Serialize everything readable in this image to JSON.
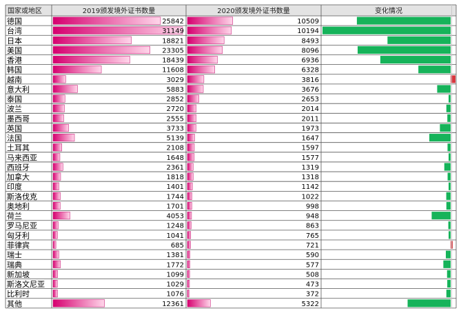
{
  "chart_data": {
    "type": "table",
    "headers": [
      "国家或地区",
      "2019颁发境外证书数量",
      "2020颁发境外证书数量",
      "变化情况"
    ],
    "rows": [
      {
        "region": "德国",
        "y2019": 25842,
        "y2020": 10509
      },
      {
        "region": "台湾",
        "y2019": 31149,
        "y2020": 10194
      },
      {
        "region": "日本",
        "y2019": 18821,
        "y2020": 8493
      },
      {
        "region": "美国",
        "y2019": 23305,
        "y2020": 8096
      },
      {
        "region": "香港",
        "y2019": 18439,
        "y2020": 6936
      },
      {
        "region": "韩国",
        "y2019": 11608,
        "y2020": 6328
      },
      {
        "region": "越南",
        "y2019": 3029,
        "y2020": 3816
      },
      {
        "region": "意大利",
        "y2019": 5883,
        "y2020": 3676
      },
      {
        "region": "泰国",
        "y2019": 2852,
        "y2020": 2653
      },
      {
        "region": "波兰",
        "y2019": 2720,
        "y2020": 2014
      },
      {
        "region": "墨西哥",
        "y2019": 2555,
        "y2020": 2011
      },
      {
        "region": "英国",
        "y2019": 3733,
        "y2020": 1973
      },
      {
        "region": "法国",
        "y2019": 5139,
        "y2020": 1647
      },
      {
        "region": "土耳其",
        "y2019": 2108,
        "y2020": 1597
      },
      {
        "region": "马来西亚",
        "y2019": 1648,
        "y2020": 1577
      },
      {
        "region": "西班牙",
        "y2019": 2361,
        "y2020": 1319
      },
      {
        "region": "加拿大",
        "y2019": 1818,
        "y2020": 1318
      },
      {
        "region": "印度",
        "y2019": 1401,
        "y2020": 1142
      },
      {
        "region": "斯洛伐克",
        "y2019": 1744,
        "y2020": 1022
      },
      {
        "region": "奥地利",
        "y2019": 1701,
        "y2020": 998
      },
      {
        "region": "荷兰",
        "y2019": 4053,
        "y2020": 948
      },
      {
        "region": "罗马尼亚",
        "y2019": 1248,
        "y2020": 863
      },
      {
        "region": "匈牙利",
        "y2019": 1041,
        "y2020": 765
      },
      {
        "region": "菲律宾",
        "y2019": 685,
        "y2020": 721
      },
      {
        "region": "瑞士",
        "y2019": 1381,
        "y2020": 590
      },
      {
        "region": "瑞典",
        "y2019": 1772,
        "y2020": 577
      },
      {
        "region": "新加坡",
        "y2019": 1099,
        "y2020": 508
      },
      {
        "region": "斯洛文尼亚",
        "y2019": 1029,
        "y2020": 473
      },
      {
        "region": "比利时",
        "y2019": 1076,
        "y2020": 372
      },
      {
        "region": "其他",
        "y2019": 12361,
        "y2020": 5322
      }
    ],
    "colors": {
      "bar_gradient_start": "#d6006f",
      "bar_gradient_end": "#ffd6ea",
      "decrease": "#16b35a",
      "increase": "#d9363e"
    }
  }
}
